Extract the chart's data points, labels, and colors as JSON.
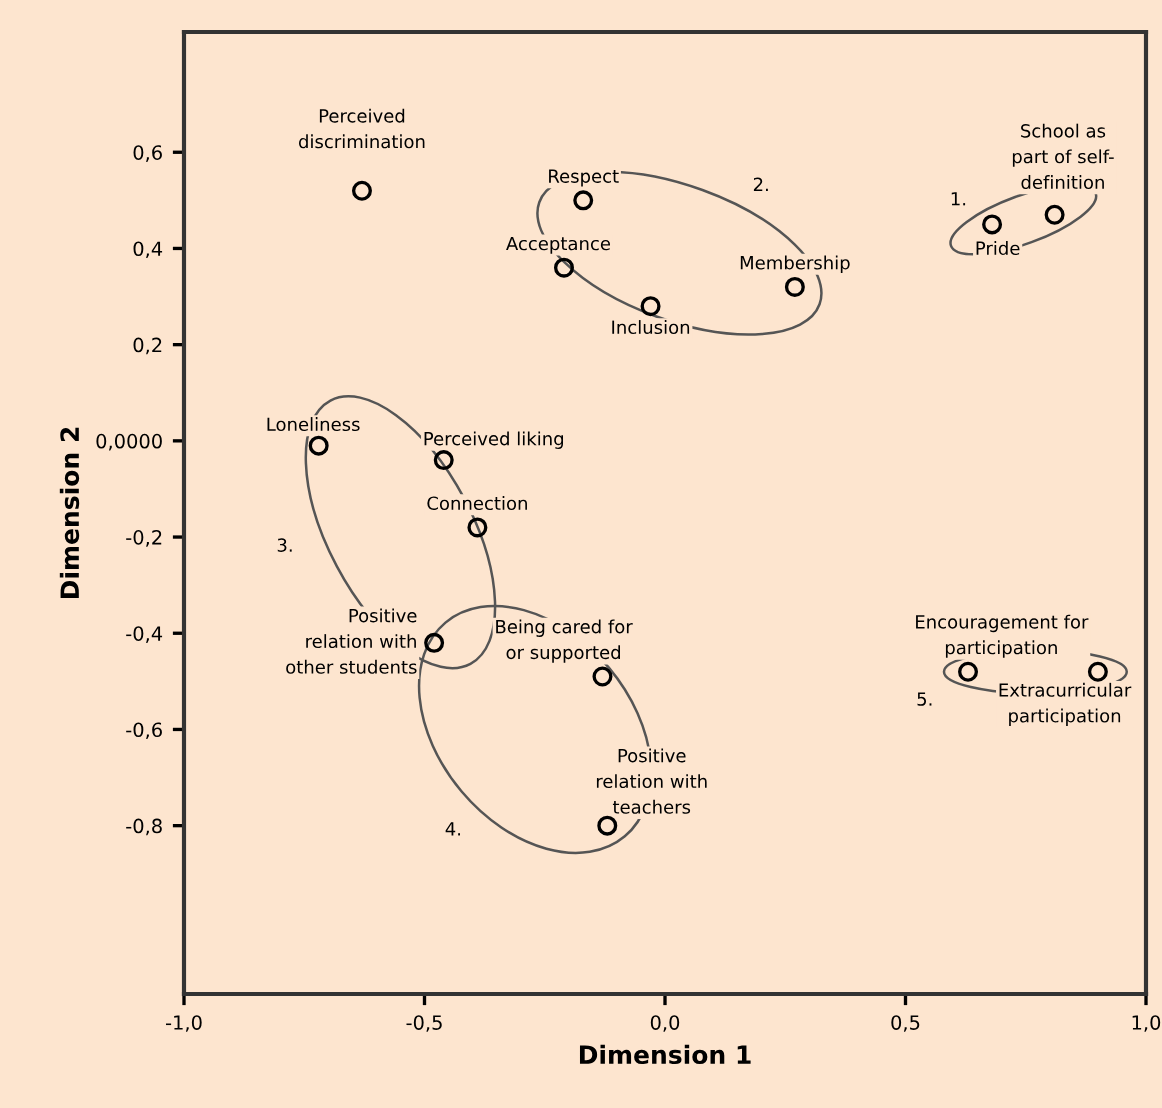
{
  "chart_data": {
    "type": "scatter",
    "xlabel": "Dimension 1",
    "ylabel": "Dimension 2",
    "xlim": [
      -1.0,
      1.0
    ],
    "ylim": [
      -1.15,
      0.85
    ],
    "xticks": [
      {
        "value": -1.0,
        "label": "-1,0"
      },
      {
        "value": -0.5,
        "label": "-0,5"
      },
      {
        "value": 0.0,
        "label": "0,0"
      },
      {
        "value": 0.5,
        "label": "0,5"
      },
      {
        "value": 1.0,
        "label": "1,0"
      }
    ],
    "yticks": [
      {
        "value": -0.8,
        "label": "-0,8"
      },
      {
        "value": -0.6,
        "label": "-0,6"
      },
      {
        "value": -0.4,
        "label": "-0,4"
      },
      {
        "value": -0.2,
        "label": "-0,2"
      },
      {
        "value": 0.0,
        "label": "0,0000"
      },
      {
        "value": 0.2,
        "label": "0,2"
      },
      {
        "value": 0.4,
        "label": "0,4"
      },
      {
        "value": 0.6,
        "label": "0,6"
      }
    ],
    "grid": false,
    "marker": "circle",
    "series": [
      {
        "color": "#000000",
        "x": [
          -0.63,
          -0.17,
          -0.21,
          -0.03,
          0.27,
          0.68,
          0.81,
          -0.72,
          -0.46,
          -0.39,
          -0.48,
          -0.13,
          -0.12,
          0.63,
          0.9
        ],
        "values": [
          0.52,
          0.5,
          0.36,
          0.28,
          0.32,
          0.45,
          0.47,
          -0.01,
          -0.04,
          -0.18,
          -0.42,
          -0.49,
          -0.8,
          -0.48,
          -0.48
        ]
      }
    ],
    "annotations": [
      {
        "text": "Perceived\ndiscrimination",
        "x": -0.63,
        "y": 0.52
      },
      {
        "text": "Respect",
        "x": -0.17,
        "y": 0.5
      },
      {
        "text": "Acceptance",
        "x": -0.21,
        "y": 0.36
      },
      {
        "text": "Inclusion",
        "x": -0.03,
        "y": 0.28
      },
      {
        "text": "Membership",
        "x": 0.27,
        "y": 0.32
      },
      {
        "text": "Pride",
        "x": 0.68,
        "y": 0.45
      },
      {
        "text": "School as\npart of self-\ndefinition",
        "x": 0.81,
        "y": 0.47
      },
      {
        "text": "Loneliness",
        "x": -0.72,
        "y": -0.01
      },
      {
        "text": "Perceived liking",
        "x": -0.46,
        "y": -0.04
      },
      {
        "text": "Connection",
        "x": -0.39,
        "y": -0.18
      },
      {
        "text": "Positive\nrelation with\nother students",
        "x": -0.48,
        "y": -0.42
      },
      {
        "text": "Being cared for\nor supported",
        "x": -0.13,
        "y": -0.49
      },
      {
        "text": "Positive\nrelation with\nteachers",
        "x": -0.12,
        "y": -0.8
      },
      {
        "text": "Encouragement for\nparticipation",
        "x": 0.63,
        "y": -0.48
      },
      {
        "text": "Extracurricular\nparticipation",
        "x": 0.9,
        "y": -0.48
      },
      "1.",
      "2.",
      "3.",
      "4.",
      "5."
    ]
  }
}
